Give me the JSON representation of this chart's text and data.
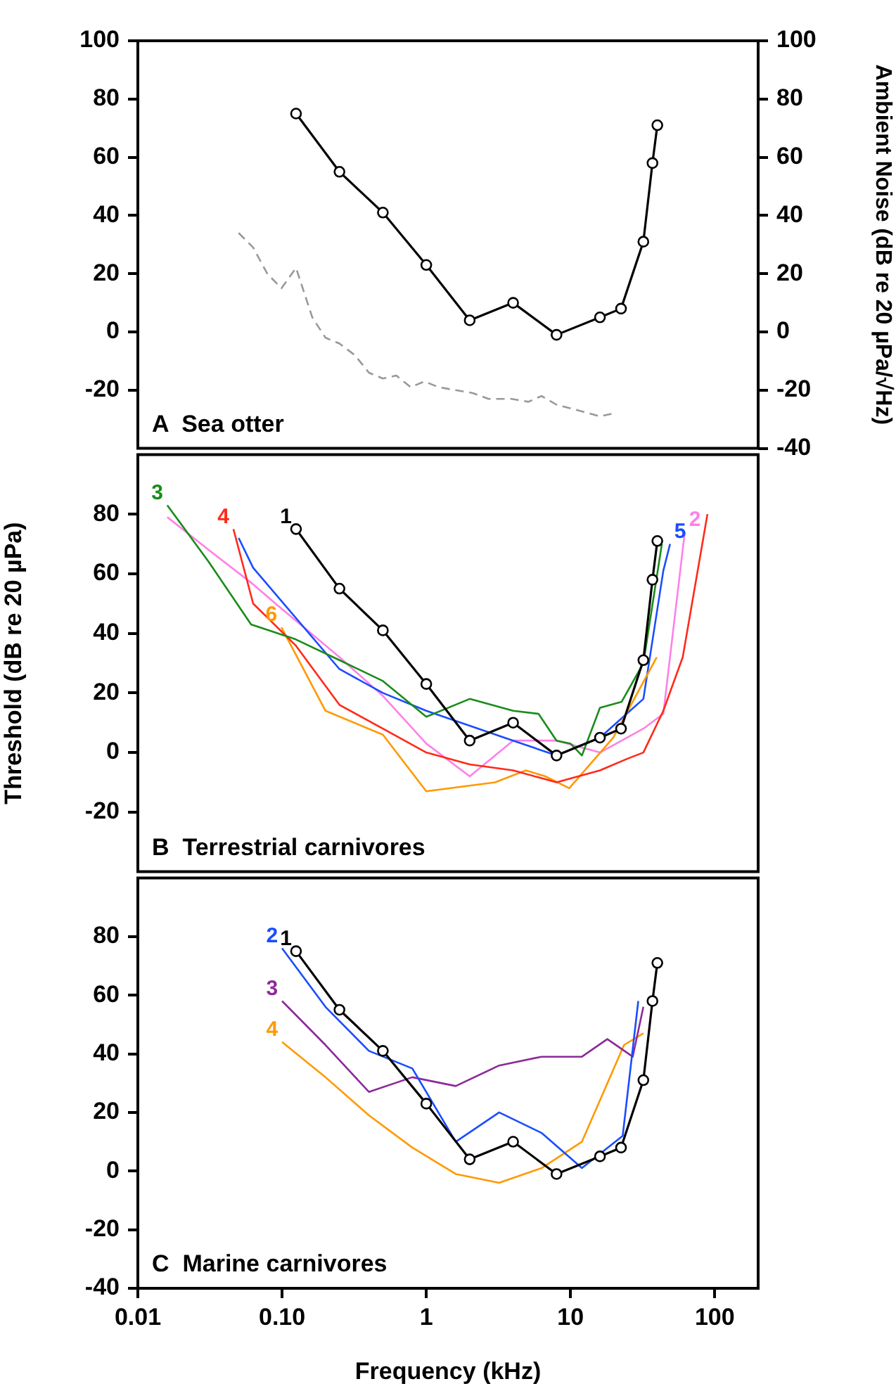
{
  "chart_data": [
    {
      "type": "line",
      "title": "A  Sea otter",
      "y2label": "Ambient Noise (dB re 20 µPa/√Hz)",
      "xlim": [
        0.01,
        200
      ],
      "ylim": [
        -40,
        100
      ],
      "yticks": [
        -20,
        0,
        20,
        40,
        60,
        80,
        100
      ],
      "y2lim": [
        -40,
        100
      ],
      "y2ticks": [
        -40,
        -20,
        0,
        20,
        40,
        60,
        80,
        100
      ],
      "log": "x",
      "tick_labels": "y",
      "grid": false,
      "series": [
        {
          "color": "#000000",
          "marker": "circle",
          "x": [
            0.125,
            0.25,
            0.5,
            1,
            2,
            4,
            8,
            16,
            22.4,
            32,
            37,
            40
          ],
          "values": [
            75,
            55,
            41,
            23,
            4,
            10,
            -1,
            5,
            8,
            31,
            58,
            71
          ]
        },
        {
          "color": "#999999",
          "axis": "y2",
          "marker": "none",
          "line_style": "dashed",
          "x": [
            0.05,
            0.063,
            0.079,
            0.099,
            0.125,
            0.162,
            0.2,
            0.25,
            0.32,
            0.4,
            0.5,
            0.62,
            0.78,
            0.97,
            1.22,
            1.6,
            2.1,
            2.7,
            3.9,
            5.1,
            6.3,
            8,
            11.4,
            16,
            19.8
          ],
          "values": [
            34,
            29,
            20,
            15,
            22,
            5,
            -2,
            -4,
            -8,
            -14,
            -16,
            -15,
            -19,
            -17,
            -19,
            -20,
            -21,
            -23,
            -23,
            -24,
            -22,
            -25,
            -27,
            -29,
            -28
          ]
        }
      ]
    },
    {
      "type": "line",
      "title": "B  Terrestrial carnivores",
      "ylabel": "Threshold (dB re 20 µPa)",
      "xlim": [
        0.01,
        200
      ],
      "ylim": [
        -40,
        100
      ],
      "yticks": [
        -20,
        0,
        20,
        40,
        60,
        80
      ],
      "log": "x",
      "tick_labels": "y",
      "grid": false,
      "series": [
        {
          "name": "3",
          "color": "#1a8c1a",
          "marker": "none",
          "x": [
            0.016,
            0.031,
            0.061,
            0.124,
            0.25,
            0.5,
            1,
            2,
            4,
            6,
            8,
            10,
            12,
            16,
            22.6,
            32,
            43
          ],
          "values": [
            83,
            64,
            43,
            38,
            31,
            24,
            12,
            18,
            14,
            13,
            4,
            3,
            -1,
            15,
            17,
            30,
            70
          ]
        },
        {
          "name": "4",
          "color": "#ff2a1a",
          "marker": "none",
          "x": [
            0.046,
            0.063,
            0.124,
            0.25,
            0.5,
            1,
            2,
            4,
            8,
            16,
            25,
            32,
            44,
            60,
            89
          ],
          "values": [
            75,
            50,
            36,
            16,
            8,
            0,
            -4,
            -6,
            -10,
            -6,
            -2,
            0,
            14,
            32,
            80
          ]
        },
        {
          "name": "6",
          "color": "#ff9900",
          "marker": "none",
          "x": [
            0.099,
            0.2,
            0.5,
            1,
            3,
            4.9,
            6.7,
            9.8,
            19.8,
            39.6
          ],
          "values": [
            42,
            14,
            6,
            -13,
            -10,
            -6,
            -8,
            -12,
            5,
            32
          ]
        },
        {
          "name": "1",
          "color": "#000000",
          "marker": "circle",
          "x": [
            0.125,
            0.25,
            0.5,
            1,
            2,
            4,
            8,
            16,
            22.4,
            32,
            37,
            40
          ],
          "values": [
            75,
            55,
            41,
            23,
            4,
            10,
            -1,
            5,
            8,
            31,
            58,
            71
          ]
        },
        {
          "name": "5",
          "color": "#1a4dff",
          "marker": "none",
          "x": [
            0.05,
            0.063,
            0.25,
            0.5,
            1,
            4,
            8,
            16,
            32,
            44,
            49
          ],
          "values": [
            72,
            62,
            28,
            20,
            14,
            4,
            -1,
            5,
            18,
            61,
            70
          ]
        },
        {
          "name": "2",
          "color": "#ff80e8",
          "marker": "none",
          "x": [
            0.016,
            0.031,
            0.061,
            0.09,
            0.25,
            0.5,
            1,
            2,
            4,
            8,
            16,
            32,
            44,
            62
          ],
          "values": [
            79,
            68,
            57,
            50,
            32,
            19,
            3,
            -8,
            4,
            4,
            0,
            8,
            13,
            74
          ]
        }
      ]
    },
    {
      "type": "line",
      "title": "C  Marine carnivores",
      "xlabel": "Frequency (kHz)",
      "xlim": [
        0.01,
        200
      ],
      "xticks": [
        0.01,
        {
          "value": 0.1,
          "label": "0.10"
        },
        1,
        10,
        100
      ],
      "ylim": [
        -40,
        100
      ],
      "yticks": [
        -40,
        -20,
        0,
        20,
        40,
        60,
        80
      ],
      "log": "x",
      "grid": false,
      "series": [
        {
          "name": "1",
          "color": "#000000",
          "marker": "circle",
          "x": [
            0.125,
            0.25,
            0.5,
            1,
            2,
            4,
            8,
            16,
            22.4,
            32,
            37,
            40
          ],
          "values": [
            75,
            55,
            41,
            23,
            4,
            10,
            -1,
            5,
            8,
            31,
            58,
            71
          ]
        },
        {
          "name": "2",
          "color": "#1a4dff",
          "marker": "none",
          "x": [
            0.1,
            0.2,
            0.4,
            0.8,
            1.6,
            3.2,
            6.3,
            12,
            23,
            29.5
          ],
          "values": [
            76,
            56,
            41,
            35,
            10,
            20,
            13,
            1,
            12,
            58
          ]
        },
        {
          "name": "3",
          "color": "#8c2a99",
          "marker": "none",
          "x": [
            0.1,
            0.2,
            0.4,
            0.8,
            1.6,
            3.2,
            6.3,
            12,
            18,
            27,
            32
          ],
          "values": [
            58,
            43,
            27,
            32,
            29,
            36,
            39,
            39,
            45,
            39,
            56
          ]
        },
        {
          "name": "4",
          "color": "#ff9900",
          "marker": "none",
          "x": [
            0.1,
            0.2,
            0.4,
            0.8,
            1.6,
            3.2,
            6.3,
            12,
            23.5,
            32
          ],
          "values": [
            44,
            32,
            19,
            8,
            -1,
            -4,
            1,
            10,
            43,
            47
          ]
        }
      ]
    }
  ]
}
